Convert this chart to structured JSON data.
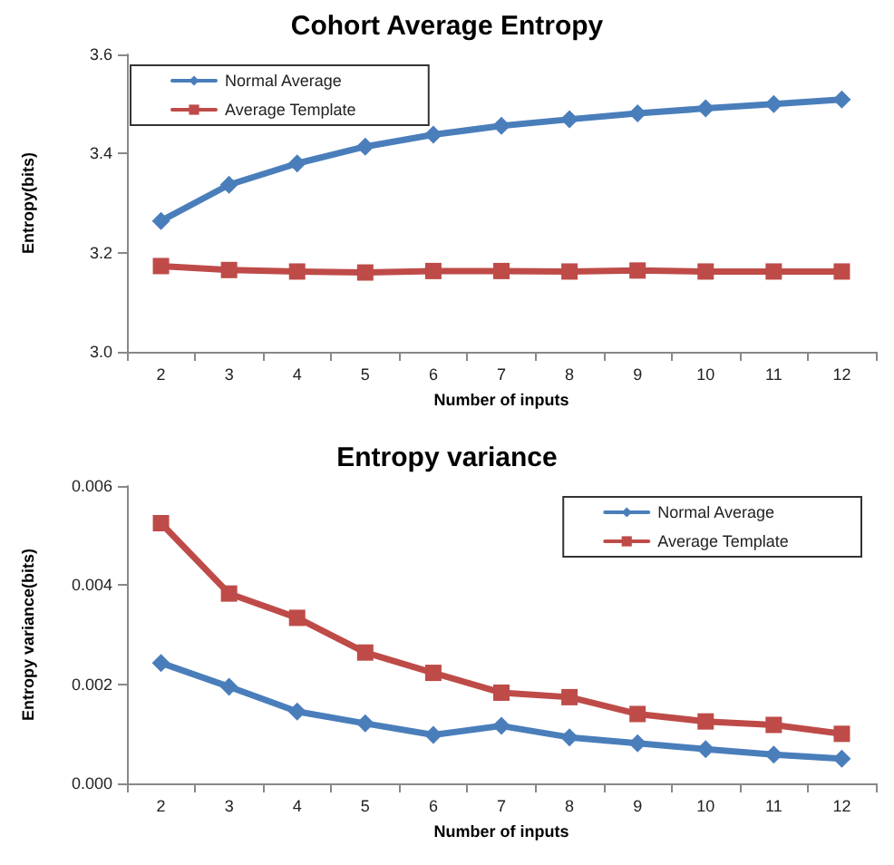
{
  "chart_data": [
    {
      "type": "line",
      "title": "Cohort Average Entropy",
      "xlabel": "Number of inputs",
      "ylabel": "Entropy(bits)",
      "categories": [
        "2",
        "3",
        "4",
        "5",
        "6",
        "7",
        "8",
        "9",
        "10",
        "11",
        "12"
      ],
      "series": [
        {
          "name": "Normal Average",
          "color": "#4a7ebb",
          "marker": "diamond",
          "values": [
            3.264,
            3.337,
            3.38,
            3.414,
            3.438,
            3.456,
            3.469,
            3.481,
            3.491,
            3.5,
            3.509
          ]
        },
        {
          "name": "Average Template",
          "color": "#be4b48",
          "marker": "square",
          "values": [
            3.173,
            3.165,
            3.162,
            3.16,
            3.163,
            3.163,
            3.162,
            3.164,
            3.162,
            3.162,
            3.162
          ]
        }
      ],
      "ylim": [
        3.0,
        3.6
      ],
      "yticks": [
        {
          "value": 3,
          "label": "3.0"
        },
        {
          "value": 3.2,
          "label": "3.2"
        },
        {
          "value": 3.4,
          "label": "3.4"
        },
        {
          "value": 3.6,
          "label": "3.6"
        }
      ],
      "grid": false,
      "legend": "top left",
      "line_style": "solid"
    },
    {
      "type": "line",
      "title": "Entropy variance",
      "xlabel": "Number of inputs",
      "ylabel": "Entropy variance(bits)",
      "categories": [
        "2",
        "3",
        "4",
        "5",
        "6",
        "7",
        "8",
        "9",
        "10",
        "11",
        "12"
      ],
      "series": [
        {
          "name": "Normal Average",
          "color": "#4a7ebb",
          "marker": "diamond",
          "values": [
            0.00243,
            0.00195,
            0.00145,
            0.00121,
            0.00098,
            0.00116,
            0.00093,
            0.00081,
            0.00069,
            0.00058,
            0.0005
          ]
        },
        {
          "name": "Average Template",
          "color": "#be4b48",
          "marker": "square",
          "values": [
            0.00525,
            0.00383,
            0.00334,
            0.00264,
            0.00223,
            0.00183,
            0.00174,
            0.0014,
            0.00125,
            0.00118,
            0.001
          ]
        }
      ],
      "ylim": [
        0,
        0.006
      ],
      "yticks": [
        {
          "value": 0,
          "label": "0.000"
        },
        {
          "value": 0.002,
          "label": "0.002"
        },
        {
          "value": 0.004,
          "label": "0.004"
        },
        {
          "value": 0.006,
          "label": "0.006"
        }
      ],
      "grid": false,
      "legend": "top right",
      "line_style": "solid"
    }
  ]
}
